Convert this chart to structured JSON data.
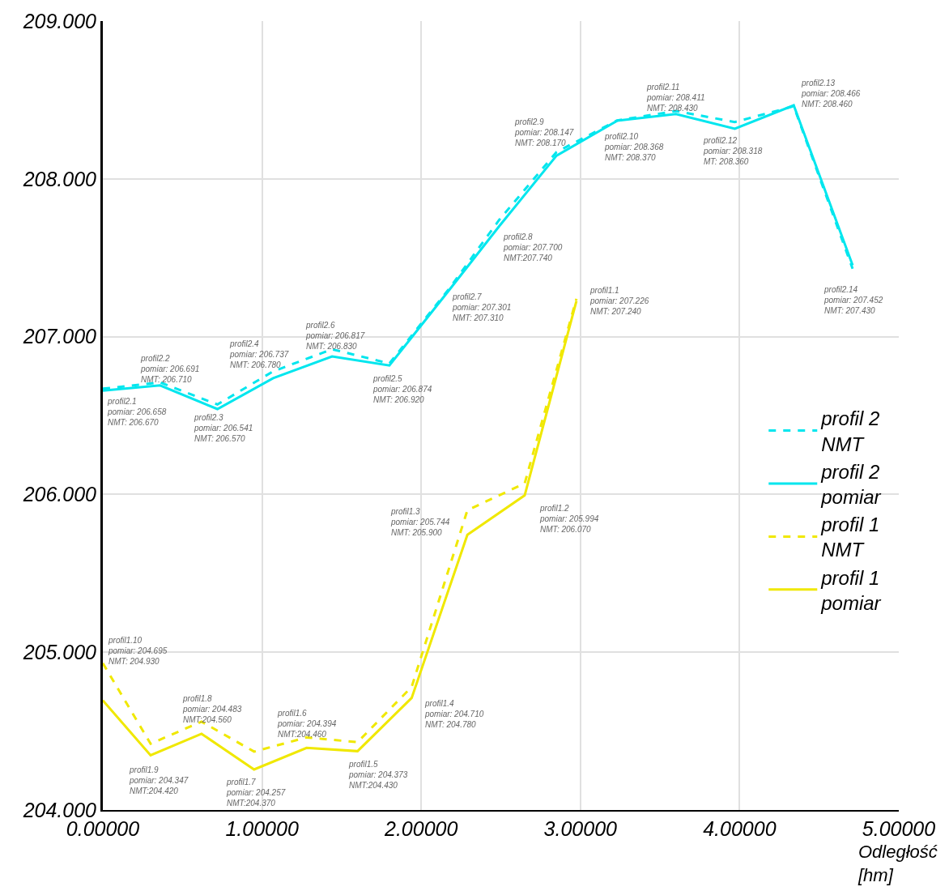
{
  "chart_data": {
    "type": "line",
    "xlabel": "Odległość\n[hm]",
    "xlim": [
      0,
      5
    ],
    "xticks": [
      {
        "value": 0,
        "label": "0.00000"
      },
      {
        "value": 1,
        "label": "1.00000"
      },
      {
        "value": 2,
        "label": "2.00000"
      },
      {
        "value": 3,
        "label": "3.00000"
      },
      {
        "value": 4,
        "label": "4.00000"
      },
      {
        "value": 5,
        "label": "5.00000"
      }
    ],
    "ylim": [
      204,
      209
    ],
    "yticks": [
      {
        "value": 204,
        "label": "204.000"
      },
      {
        "value": 205,
        "label": "205.000"
      },
      {
        "value": 206,
        "label": "206.000"
      },
      {
        "value": 207,
        "label": "207.000"
      },
      {
        "value": 208,
        "label": "208.000"
      },
      {
        "value": 209,
        "label": "209.000"
      }
    ],
    "grid": true,
    "legend": "right",
    "marker": "none",
    "series": [
      {
        "name": "profil 2\nNMT",
        "color": "#00e6ee",
        "line_style": "dashed",
        "x": [
          0,
          0.36,
          0.72,
          1.07,
          1.44,
          1.8,
          2.18,
          2.49,
          2.85,
          3.23,
          3.6,
          3.97,
          4.34,
          4.71
        ],
        "values": [
          206.67,
          206.71,
          206.57,
          206.78,
          206.92,
          206.83,
          207.31,
          207.74,
          208.17,
          208.37,
          208.43,
          208.36,
          208.46,
          207.43
        ]
      },
      {
        "name": "profil 2\npomiar",
        "color": "#00e6ee",
        "line_style": "solid",
        "x": [
          0,
          0.36,
          0.72,
          1.07,
          1.44,
          1.8,
          2.18,
          2.49,
          2.85,
          3.23,
          3.6,
          3.97,
          4.34,
          4.71
        ],
        "values": [
          206.658,
          206.691,
          206.541,
          206.737,
          206.874,
          206.817,
          207.301,
          207.7,
          208.147,
          208.368,
          208.411,
          208.318,
          208.466,
          207.452
        ]
      },
      {
        "name": "profil 1\nNMT",
        "color": "#f0e800",
        "line_style": "dashed",
        "x": [
          0,
          0.3,
          0.62,
          0.95,
          1.28,
          1.6,
          1.94,
          2.29,
          2.65,
          2.975
        ],
        "values": [
          204.93,
          204.42,
          204.56,
          204.37,
          204.46,
          204.43,
          204.78,
          205.9,
          206.07,
          207.24
        ]
      },
      {
        "name": "profil 1\npomiar",
        "color": "#f0e800",
        "line_style": "solid",
        "x": [
          0,
          0.3,
          0.62,
          0.95,
          1.28,
          1.6,
          1.94,
          2.29,
          2.65,
          2.975
        ],
        "values": [
          204.695,
          204.347,
          204.483,
          204.257,
          204.394,
          204.373,
          204.71,
          205.744,
          205.994,
          207.226
        ]
      }
    ],
    "annotations": [
      {
        "text": "profil2.1\npomiar: 206.658\nNMT: 206.670",
        "x": 0,
        "y": 206.658
      },
      {
        "text": "profil2.2\npomiar: 206.691\nNMT: 206.710",
        "x": 0.36,
        "y": 206.691
      },
      {
        "text": "profil2.3\npomiar: 206.541\nNMT: 206.570",
        "x": 0.72,
        "y": 206.541
      },
      {
        "text": "profil2.4\npomiar: 206.737\nNMT: 206.780",
        "x": 1.07,
        "y": 206.737
      },
      "profil2.5\npomiar: 206.874\nNMT: 206.920",
      "profil2.6\npomiar: 206.817\nNMT: 206.830",
      {
        "text": "profil2.7\npomiar: 207.301\nNMT: 207.310",
        "x": 2.18,
        "y": 207.301
      },
      {
        "text": "profil2.8\npomiar: 207.700\nNMT:207.740",
        "x": 2.49,
        "y": 207.7
      },
      {
        "text": "profil2.9\npomiar: 208.147\nNMT: 208.170",
        "x": 2.85,
        "y": 208.147
      },
      {
        "text": "profil2.10\npomiar: 208.368\nNMT: 208.370",
        "x": 3.23,
        "y": 208.368
      },
      {
        "text": "profil2.11\npomiar: 208.411\nNMT: 208.430",
        "x": 3.6,
        "y": 208.411
      },
      {
        "text": "profil2.12\npomiar: 208.318\nMT: 208.360",
        "x": 3.97,
        "y": 208.318
      },
      {
        "text": "profil2.13\npomiar: 208.466\nNMT: 208.460",
        "x": 4.34,
        "y": 208.466
      },
      {
        "text": "profil2.14\npomiar: 207.452\nNMT: 207.430",
        "x": 4.71,
        "y": 207.452
      },
      {
        "text": "profil1.1\npomiar: 207.226\nNMT: 207.240",
        "x": 2.975,
        "y": 207.226
      },
      {
        "text": "profil1.2\npomiar: 205.994\nNMT: 206.070",
        "x": 2.65,
        "y": 205.994
      },
      {
        "text": "profil1.3\npomiar: 205.744\nNMT: 205.900",
        "x": 2.29,
        "y": 205.744
      },
      {
        "text": "profil1.4\npomiar: 204.710\nNMT: 204.780",
        "x": 1.94,
        "y": 204.71
      },
      {
        "text": "profil1.5\npomiar: 204.373\nNMT:204.430",
        "x": 1.6,
        "y": 204.373
      },
      {
        "text": "profil1.6\npomiar: 204.394\nNMT:204.460",
        "x": 1.28,
        "y": 204.394
      },
      {
        "text": "profil1.7\npomiar: 204.257\nNMT:204.370",
        "x": 0.95,
        "y": 204.257
      },
      {
        "text": "profil1.8\npomiar: 204.483\nNMT:204.560",
        "x": 0.62,
        "y": 204.483
      },
      {
        "text": "profil1.9\npomiar: 204.347\nNMT:204.420",
        "x": 0.3,
        "y": 204.347
      },
      "profil1.10\npomiar: 204.695\nNMT: 204.930"
    ]
  }
}
